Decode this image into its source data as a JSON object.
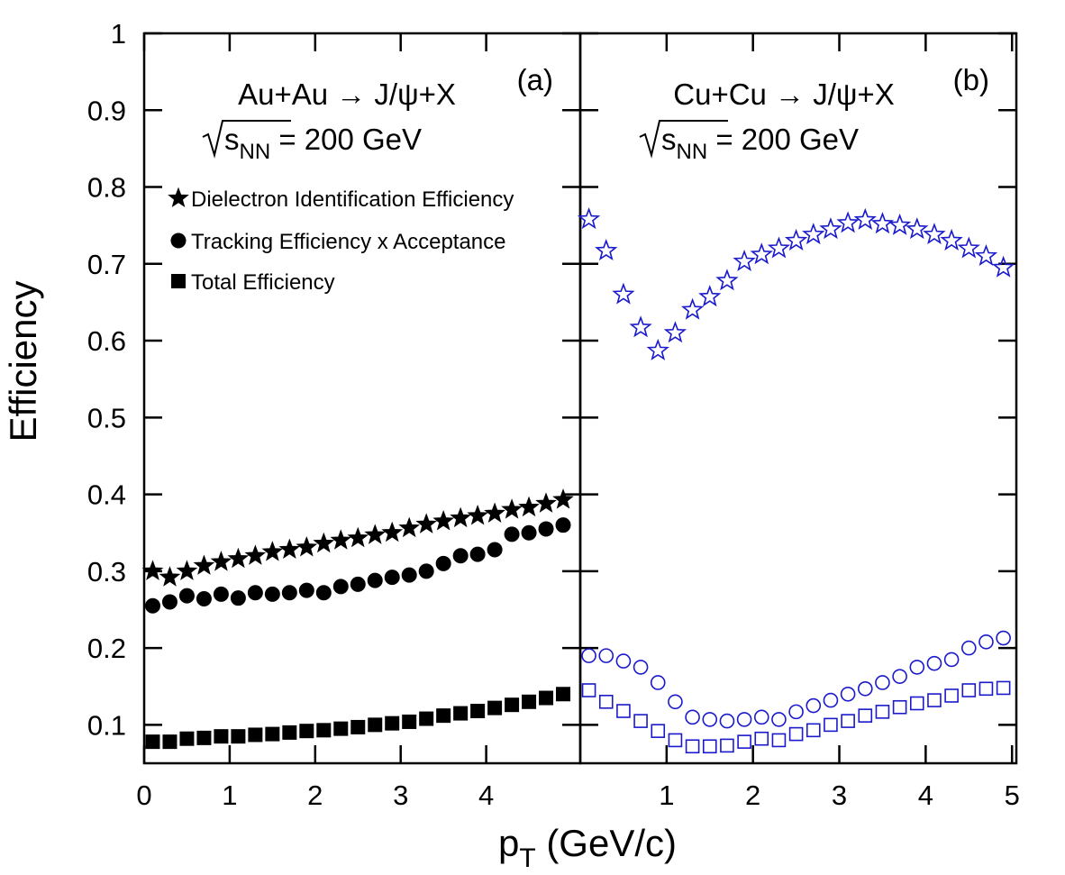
{
  "chart_data": {
    "type": "scatter",
    "ylabel": "Efficiency",
    "xlabel": "p_T (GeV/c)",
    "ylim": [
      0.05,
      1.0
    ],
    "yticks": [
      0.1,
      0.2,
      0.3,
      0.4,
      0.5,
      0.6,
      0.7,
      0.8,
      0.9,
      1
    ],
    "ytick_labels": [
      "0.1",
      "0.2",
      "0.3",
      "0.4",
      "0.5",
      "0.6",
      "0.7",
      "0.8",
      "0.9",
      "1"
    ],
    "grid": false,
    "panels": [
      {
        "label": "(a)",
        "reaction": "Au+Au → J/ψ+X",
        "energy_sqrt": "s",
        "energy_sub": "NN",
        "energy_rest": " = 200 GeV",
        "xlim": [
          0,
          5.1
        ],
        "xticks": [
          0,
          1,
          2,
          3,
          4
        ],
        "xtick_labels": [
          "0",
          "1",
          "2",
          "3",
          "4"
        ],
        "marker_fill": "filled",
        "color": "#000000",
        "legend": [
          {
            "marker": "star",
            "label": "Dielectron Identification Efficiency"
          },
          {
            "marker": "circle",
            "label": "Tracking Efficiency x Acceptance"
          },
          {
            "marker": "square",
            "label": "Total Efficiency"
          }
        ],
        "series": [
          {
            "marker": "star",
            "x": [
              0.1,
              0.3,
              0.5,
              0.7,
              0.9,
              1.1,
              1.3,
              1.5,
              1.7,
              1.9,
              2.1,
              2.3,
              2.5,
              2.7,
              2.9,
              3.1,
              3.3,
              3.5,
              3.7,
              3.9,
              4.1,
              4.3,
              4.5,
              4.7,
              4.9
            ],
            "y": [
              0.3,
              0.292,
              0.3,
              0.307,
              0.312,
              0.316,
              0.32,
              0.325,
              0.328,
              0.331,
              0.336,
              0.34,
              0.343,
              0.347,
              0.35,
              0.356,
              0.361,
              0.365,
              0.369,
              0.372,
              0.375,
              0.38,
              0.383,
              0.388,
              0.393
            ]
          },
          {
            "marker": "circle",
            "x": [
              0.1,
              0.3,
              0.5,
              0.7,
              0.9,
              1.1,
              1.3,
              1.5,
              1.7,
              1.9,
              2.1,
              2.3,
              2.5,
              2.7,
              2.9,
              3.1,
              3.3,
              3.5,
              3.7,
              3.9,
              4.1,
              4.3,
              4.5,
              4.7,
              4.9
            ],
            "y": [
              0.255,
              0.26,
              0.268,
              0.264,
              0.27,
              0.265,
              0.272,
              0.27,
              0.272,
              0.275,
              0.272,
              0.28,
              0.283,
              0.288,
              0.292,
              0.295,
              0.3,
              0.31,
              0.32,
              0.322,
              0.328,
              0.348,
              0.35,
              0.355,
              0.36
            ]
          },
          {
            "marker": "square",
            "x": [
              0.1,
              0.3,
              0.5,
              0.7,
              0.9,
              1.1,
              1.3,
              1.5,
              1.7,
              1.9,
              2.1,
              2.3,
              2.5,
              2.7,
              2.9,
              3.1,
              3.3,
              3.5,
              3.7,
              3.9,
              4.1,
              4.3,
              4.5,
              4.7,
              4.9
            ],
            "y": [
              0.078,
              0.078,
              0.082,
              0.083,
              0.085,
              0.085,
              0.087,
              0.088,
              0.09,
              0.092,
              0.093,
              0.095,
              0.097,
              0.1,
              0.102,
              0.104,
              0.108,
              0.112,
              0.115,
              0.118,
              0.122,
              0.126,
              0.13,
              0.135,
              0.14
            ]
          }
        ]
      },
      {
        "label": "(b)",
        "reaction": "Cu+Cu → J/ψ+X",
        "energy_sqrt": "s",
        "energy_sub": "NN",
        "energy_rest": " = 200 GeV",
        "xlim": [
          0,
          5.05
        ],
        "xticks": [
          1,
          2,
          3,
          4,
          5
        ],
        "xtick_labels": [
          "1",
          "2",
          "3",
          "4",
          "5"
        ],
        "marker_fill": "open",
        "color": "#1a1acc",
        "series": [
          {
            "marker": "star",
            "x": [
              0.1,
              0.3,
              0.5,
              0.7,
              0.9,
              1.1,
              1.3,
              1.5,
              1.7,
              1.9,
              2.1,
              2.3,
              2.5,
              2.7,
              2.9,
              3.1,
              3.3,
              3.5,
              3.7,
              3.9,
              4.1,
              4.3,
              4.5,
              4.7,
              4.9
            ],
            "y": [
              0.758,
              0.717,
              0.66,
              0.617,
              0.587,
              0.61,
              0.64,
              0.657,
              0.678,
              0.703,
              0.712,
              0.72,
              0.73,
              0.738,
              0.745,
              0.753,
              0.757,
              0.752,
              0.75,
              0.745,
              0.738,
              0.73,
              0.72,
              0.71,
              0.695
            ]
          },
          {
            "marker": "circle",
            "x": [
              0.1,
              0.3,
              0.5,
              0.7,
              0.9,
              1.1,
              1.3,
              1.5,
              1.7,
              1.9,
              2.1,
              2.3,
              2.5,
              2.7,
              2.9,
              3.1,
              3.3,
              3.5,
              3.7,
              3.9,
              4.1,
              4.3,
              4.5,
              4.7,
              4.9
            ],
            "y": [
              0.19,
              0.19,
              0.183,
              0.175,
              0.155,
              0.13,
              0.11,
              0.107,
              0.105,
              0.107,
              0.11,
              0.107,
              0.117,
              0.125,
              0.132,
              0.14,
              0.147,
              0.155,
              0.163,
              0.175,
              0.18,
              0.185,
              0.2,
              0.208,
              0.213
            ]
          },
          {
            "marker": "square",
            "x": [
              0.1,
              0.3,
              0.5,
              0.7,
              0.9,
              1.1,
              1.3,
              1.5,
              1.7,
              1.9,
              2.1,
              2.3,
              2.5,
              2.7,
              2.9,
              3.1,
              3.3,
              3.5,
              3.7,
              3.9,
              4.1,
              4.3,
              4.5,
              4.7,
              4.9
            ],
            "y": [
              0.145,
              0.13,
              0.118,
              0.105,
              0.092,
              0.08,
              0.072,
              0.072,
              0.073,
              0.078,
              0.082,
              0.08,
              0.088,
              0.093,
              0.1,
              0.105,
              0.112,
              0.117,
              0.123,
              0.128,
              0.132,
              0.138,
              0.145,
              0.147,
              0.148
            ]
          }
        ]
      }
    ]
  }
}
